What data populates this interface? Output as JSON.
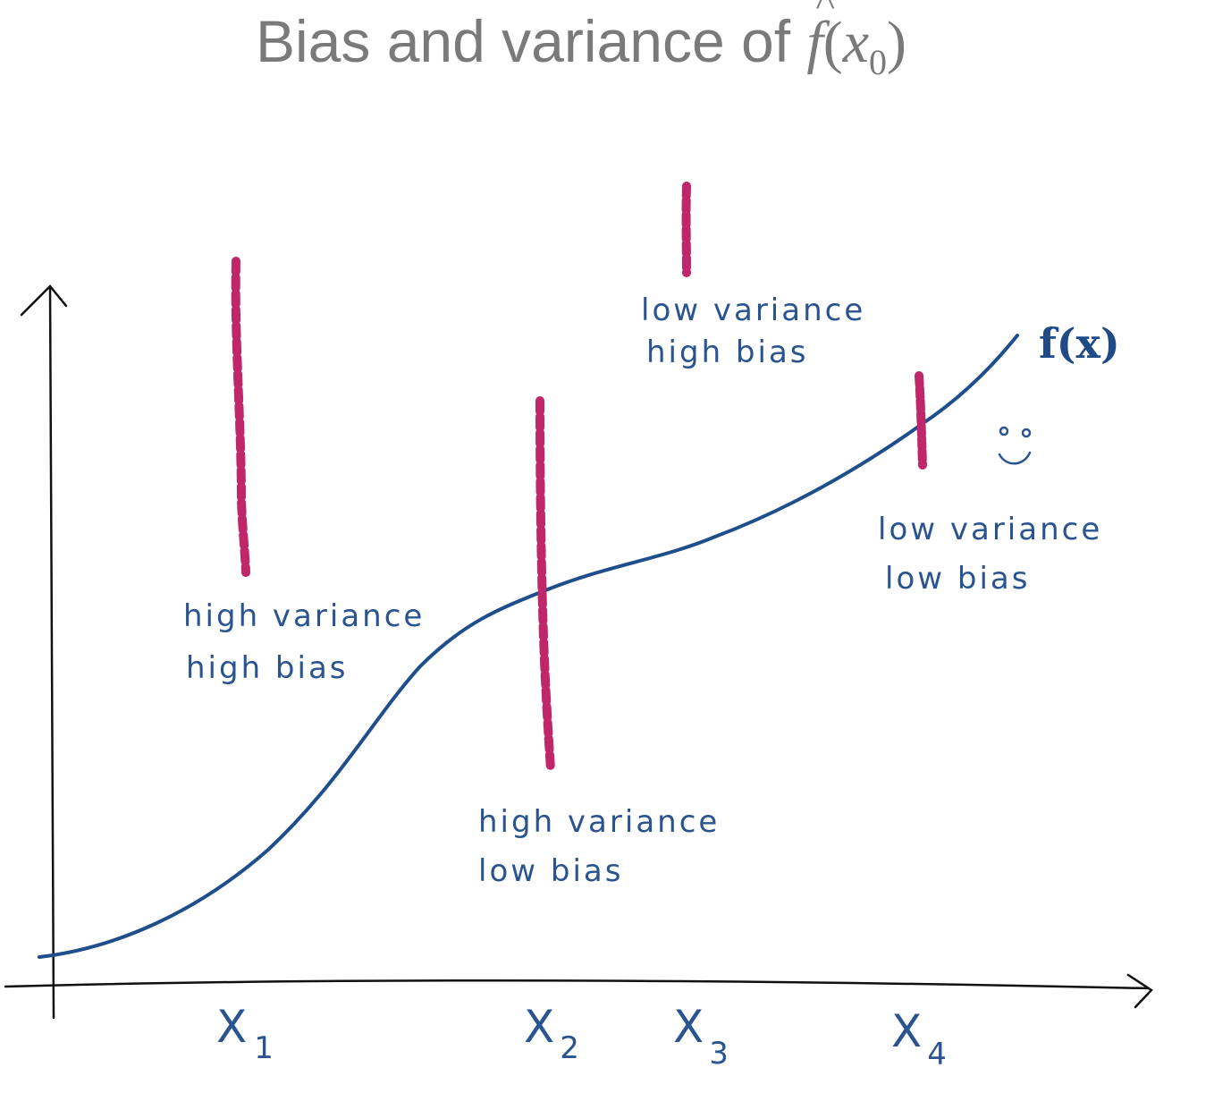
{
  "title": {
    "prefix": "Bias and variance of ",
    "fn": "f",
    "hat": "^",
    "open_paren": "(",
    "var": "x",
    "subscript": "0",
    "close_paren": ")"
  },
  "curve_label": "f(x)",
  "x_labels": [
    {
      "main": "X",
      "sub": "1"
    },
    {
      "main": "X",
      "sub": "2"
    },
    {
      "main": "X",
      "sub": "3"
    },
    {
      "main": "X",
      "sub": "4"
    }
  ],
  "annotations": [
    {
      "line1": "high variance",
      "line2": "high bias"
    },
    {
      "line1": "high variance",
      "line2": "low bias"
    },
    {
      "line1": "low variance",
      "line2": "high bias"
    },
    {
      "line1": "low variance",
      "line2": "low bias"
    }
  ],
  "colors": {
    "curve": "#1f4e8c",
    "points": "#c0266a",
    "axes": "#111111",
    "title": "#7a7a7a",
    "notes": "#2a5490"
  },
  "icons": [
    "smiley-face-icon"
  ]
}
